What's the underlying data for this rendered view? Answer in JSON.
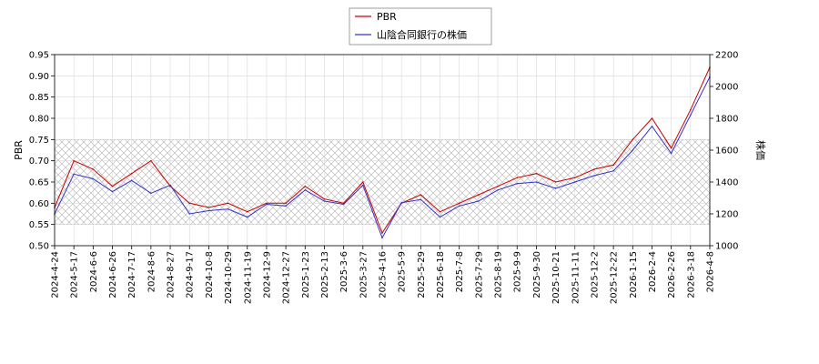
{
  "chart_data": {
    "type": "line",
    "title": "",
    "xlabel": "",
    "ylabel_left": "PBR",
    "ylabel_right": "株価",
    "y_left_range": [
      0.5,
      0.95
    ],
    "y_right_range": [
      1000,
      2200
    ],
    "y_left_ticks": [
      "0.50",
      "0.55",
      "0.60",
      "0.65",
      "0.70",
      "0.75",
      "0.80",
      "0.85",
      "0.90",
      "0.95"
    ],
    "y_right_ticks": [
      "1000",
      "1200",
      "1400",
      "1600",
      "1800",
      "2000",
      "2200"
    ],
    "x_tick_labels": [
      "2024-4-24",
      "2024-5-17",
      "2024-6-6",
      "2024-6-26",
      "2024-7-17",
      "2024-8-6",
      "2024-8-27",
      "2024-9-17",
      "2024-10-8",
      "2024-10-29",
      "2024-11-19",
      "2024-12-9",
      "2024-12-27",
      "2025-1-23",
      "2025-2-13",
      "2025-3-6",
      "2025-3-27",
      "2025-4-16",
      "2025-5-9",
      "2025-5-29",
      "2025-6-18",
      "2025-7-8",
      "2025-7-29",
      "2025-8-19",
      "2025-9-9",
      "2025-9-30",
      "2025-10-21",
      "2025-11-11",
      "2025-12-2",
      "2025-12-22",
      "2026-1-15",
      "2026-2-4",
      "2026-2-26",
      "2026-3-18",
      "2026-4-8"
    ],
    "shaded_band_pbr": [
      0.55,
      0.75
    ],
    "legend_position": "top-center",
    "grid": true,
    "series": [
      {
        "name": "PBR",
        "axis": "left",
        "color": "#cc0000",
        "x_index": [
          0,
          1,
          2,
          3,
          4,
          5,
          6,
          7,
          8,
          9,
          10,
          11,
          12,
          13,
          14,
          15,
          16,
          17,
          18,
          19,
          20,
          21,
          22,
          23,
          24,
          25,
          26,
          27,
          28,
          29,
          30,
          31,
          32,
          33,
          34
        ],
        "values": [
          0.59,
          0.7,
          0.68,
          0.64,
          0.67,
          0.7,
          0.64,
          0.6,
          0.59,
          0.6,
          0.58,
          0.6,
          0.6,
          0.64,
          0.61,
          0.6,
          0.65,
          0.53,
          0.6,
          0.62,
          0.58,
          0.6,
          0.62,
          0.64,
          0.66,
          0.67,
          0.65,
          0.66,
          0.68,
          0.69,
          0.75,
          0.8,
          0.73,
          0.82,
          0.92
        ]
      },
      {
        "name": "山陰合同銀行の株価",
        "axis": "right",
        "color": "#3333cc",
        "x_index": [
          0,
          1,
          2,
          3,
          4,
          5,
          6,
          7,
          8,
          9,
          10,
          11,
          12,
          13,
          14,
          15,
          16,
          17,
          18,
          19,
          20,
          21,
          22,
          23,
          24,
          25,
          26,
          27,
          28,
          29,
          30,
          31,
          32,
          33,
          34
        ],
        "values": [
          1200,
          1450,
          1420,
          1340,
          1410,
          1330,
          1380,
          1200,
          1220,
          1230,
          1180,
          1260,
          1250,
          1350,
          1280,
          1260,
          1380,
          1050,
          1270,
          1290,
          1180,
          1250,
          1280,
          1350,
          1390,
          1400,
          1360,
          1400,
          1440,
          1470,
          1600,
          1750,
          1580,
          1820,
          2060
        ]
      }
    ]
  }
}
